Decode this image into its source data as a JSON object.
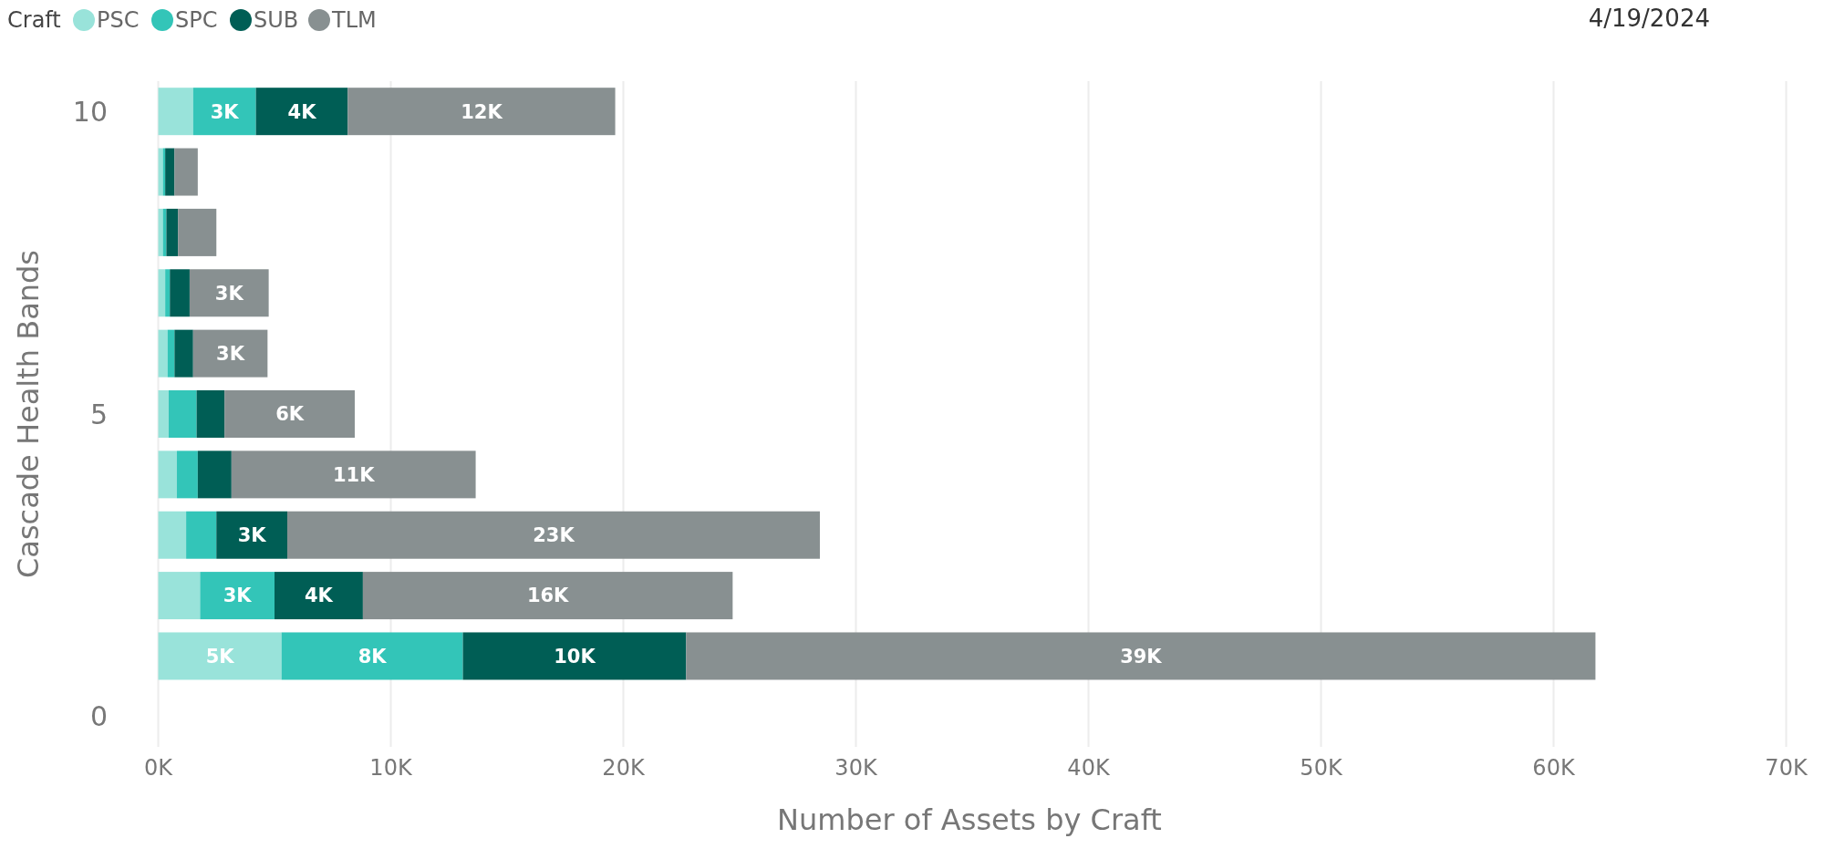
{
  "chart_data": {
    "type": "bar",
    "orientation": "horizontal",
    "stacked": true,
    "xlabel": "Number of Assets by Craft",
    "ylabel": "Cascade Health Bands",
    "legend_title": "Craft",
    "legend": "top left",
    "grid": "x",
    "annotations": [
      "4/19/2024"
    ],
    "x": [
      10,
      9,
      8,
      7,
      6,
      5,
      4,
      3,
      2,
      1
    ],
    "xlim": [
      0,
      70
    ],
    "xticks": [
      {
        "value": 0,
        "label": "0K"
      },
      {
        "value": 10,
        "label": "10K"
      },
      {
        "value": 20,
        "label": "20K"
      },
      {
        "value": 30,
        "label": "30K"
      },
      {
        "value": 40,
        "label": "40K"
      },
      {
        "value": 50,
        "label": "50K"
      },
      {
        "value": 60,
        "label": "60K"
      },
      {
        "value": 70,
        "label": "70K"
      }
    ],
    "ylim": [
      -0.5,
      10.5
    ],
    "yticks": [
      0,
      5,
      10
    ],
    "series": [
      {
        "name": "PSC",
        "color": "#99e3da",
        "values": [
          1.5,
          0.2,
          0.2,
          0.3,
          0.4,
          0.45,
          0.8,
          1.2,
          1.8,
          5.3
        ],
        "value_labels": [
          null,
          null,
          null,
          null,
          null,
          null,
          null,
          null,
          null,
          "5K"
        ]
      },
      {
        "name": "SPC",
        "color": "#33c5b8",
        "values": [
          2.7,
          0.1,
          0.15,
          0.2,
          0.3,
          1.2,
          0.9,
          1.3,
          3.2,
          7.8
        ],
        "value_labels": [
          "3K",
          null,
          null,
          null,
          null,
          null,
          null,
          null,
          "3K",
          "8K"
        ]
      },
      {
        "name": "SUB",
        "color": "#005e55",
        "values": [
          3.95,
          0.4,
          0.5,
          0.85,
          0.8,
          1.2,
          1.45,
          3.05,
          3.8,
          9.6
        ],
        "value_labels": [
          "4K",
          null,
          null,
          null,
          null,
          null,
          null,
          "3K",
          "4K",
          "10K"
        ]
      },
      {
        "name": "TLM",
        "color": "#889091",
        "values": [
          11.5,
          1.0,
          1.65,
          3.4,
          3.2,
          5.6,
          10.5,
          22.9,
          15.9,
          39.1
        ],
        "value_labels": [
          "12K",
          null,
          null,
          "3K",
          "3K",
          "6K",
          "11K",
          "23K",
          "16K",
          "39K"
        ]
      }
    ]
  }
}
